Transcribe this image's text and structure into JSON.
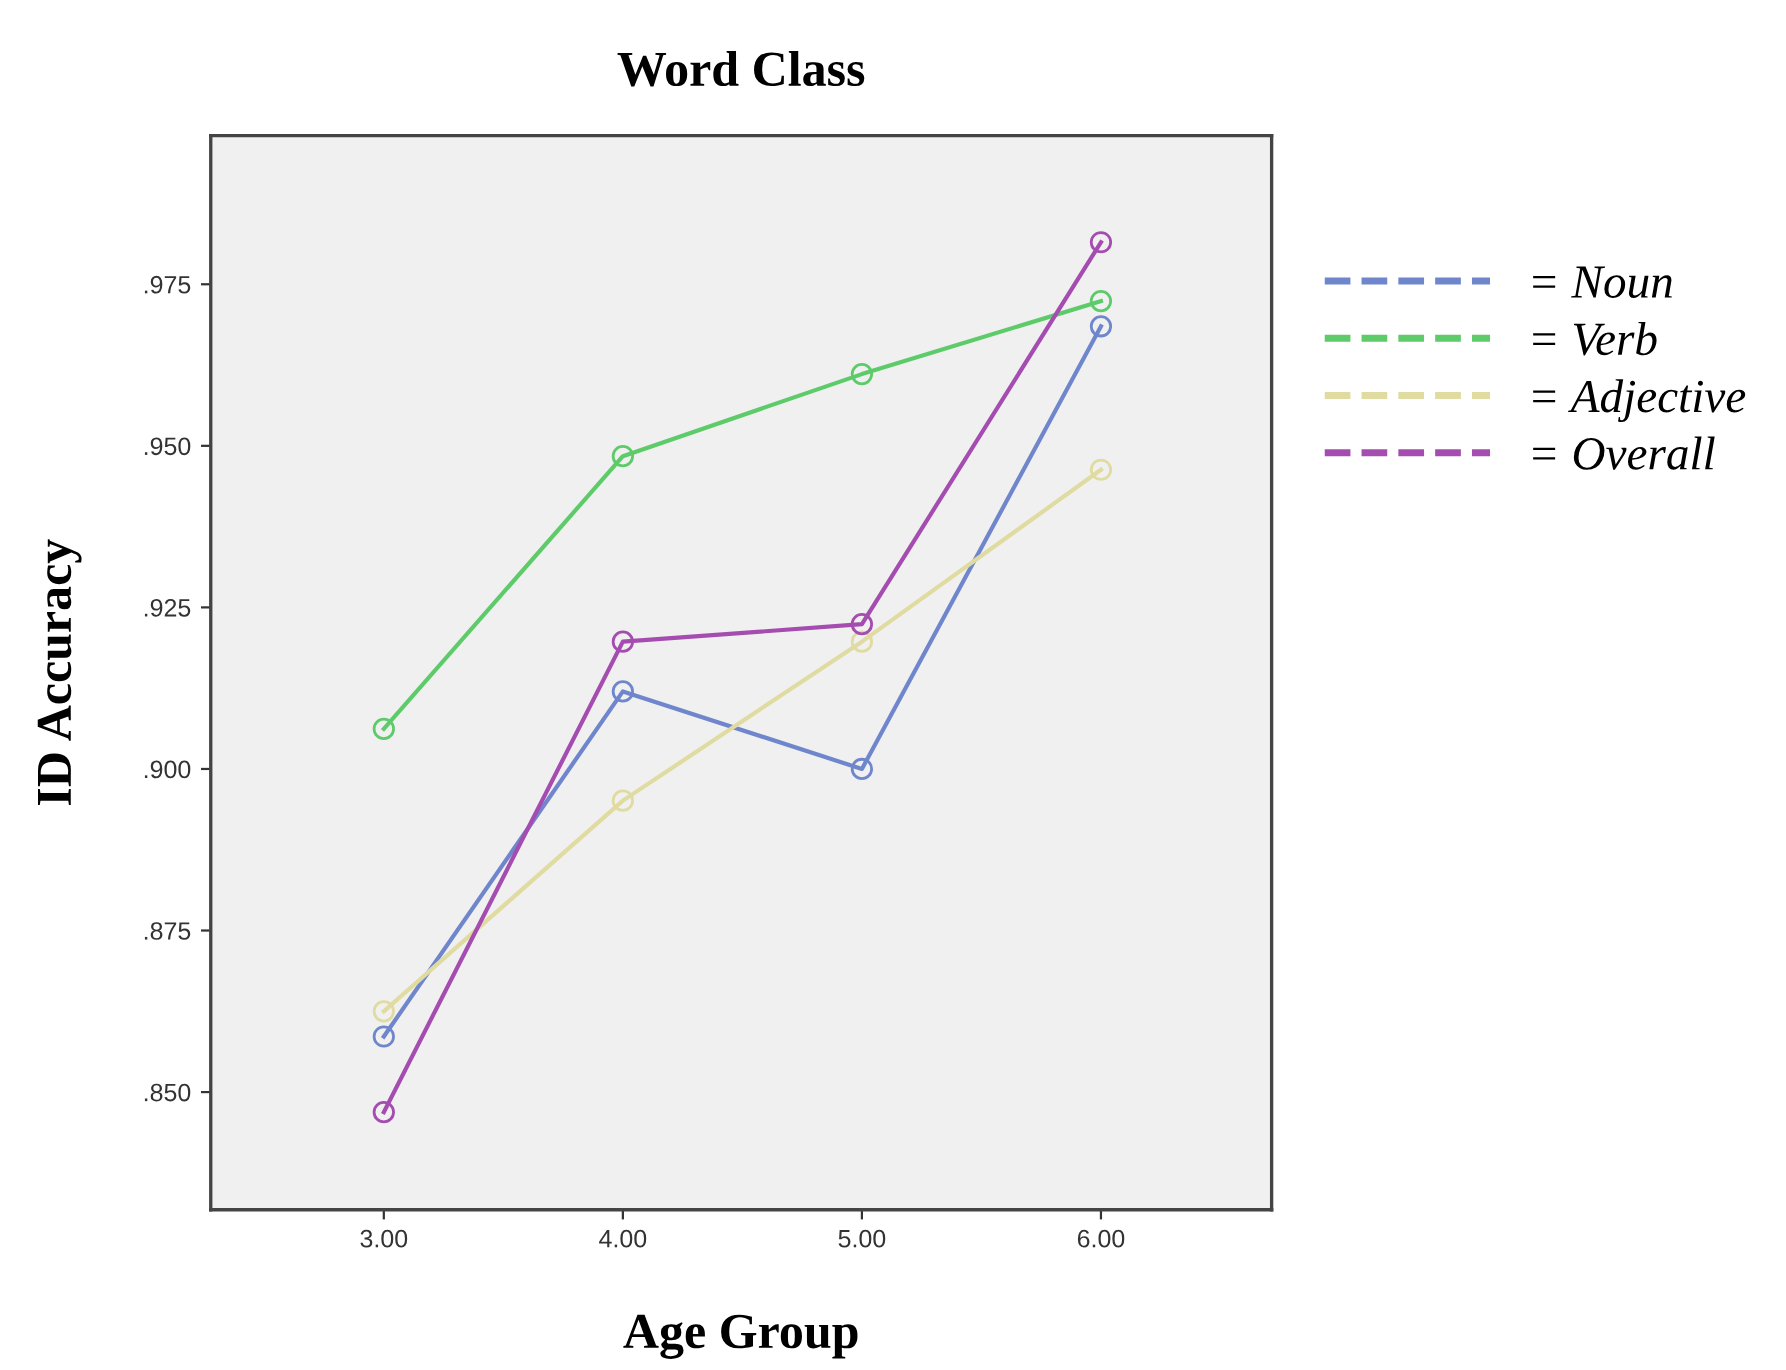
{
  "chart_data": {
    "type": "line",
    "title": "Word Class",
    "xlabel": "Age Group",
    "ylabel": "ID Accuracy",
    "x": [
      3,
      4,
      5,
      6
    ],
    "series": [
      {
        "name": "= Noun",
        "color": "#6f86cc",
        "values": [
          0.8586,
          0.912,
          0.9,
          0.9685
        ]
      },
      {
        "name": "= Verb",
        "color": "#5ecb6a",
        "values": [
          0.9062,
          0.9484,
          0.9611,
          0.9724
        ]
      },
      {
        "name": "= Adjective",
        "color": "#e0dba0",
        "values": [
          0.8625,
          0.8951,
          0.9197,
          0.9463
        ]
      },
      {
        "name": "= Overall",
        "color": "#a54cb0",
        "values": [
          0.8469,
          0.9197,
          0.9224,
          0.9815
        ]
      }
    ],
    "xlim": [
      2.276,
      6.714
    ],
    "ylim": [
      0.8318,
      0.998
    ],
    "xticks": [
      {
        "value": 3,
        "label": "3.00"
      },
      {
        "value": 4,
        "label": "4.00"
      },
      {
        "value": 5,
        "label": "5.00"
      },
      {
        "value": 6,
        "label": "6.00"
      }
    ],
    "yticks": [
      {
        "value": 0.85,
        "label": ".850"
      },
      {
        "value": 0.875,
        "label": ".875"
      },
      {
        "value": 0.9,
        "label": ".900"
      },
      {
        "value": 0.925,
        "label": ".925"
      },
      {
        "value": 0.95,
        "label": ".950"
      },
      {
        "value": 0.975,
        "label": ".975"
      }
    ],
    "grid": false,
    "legend": "right",
    "marker": "circle",
    "line_style": "solid"
  }
}
